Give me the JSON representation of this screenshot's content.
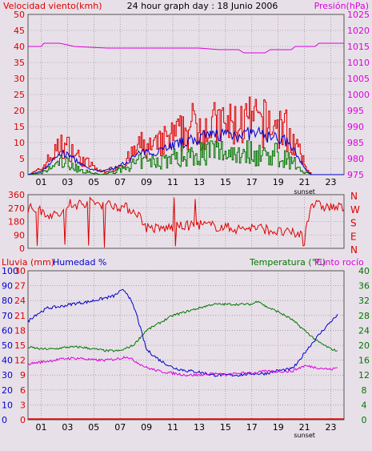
{
  "header": {
    "wind_label": "Velocidad viento(kmh)",
    "title": "24 hour graph day : 18 Junio 2006",
    "pressure_label": "Presión(hPa)"
  },
  "middle_header": {
    "rain_label": "Lluvia (mm)",
    "humidity_label": "Humedad %",
    "temperature_label": "Temperatura (°C)",
    "dewpoint_label": "Punto rocío"
  },
  "sunset_label": "sunset",
  "colors": {
    "background": "#e8e0e8",
    "grid": "#808080",
    "red": "#dd0000",
    "blue": "#0000cc",
    "green": "#007700",
    "magenta": "#dd00dd"
  },
  "chart_data": [
    {
      "type": "line",
      "name": "wind-pressure",
      "x_ticks": [
        "01",
        "03",
        "05",
        "07",
        "09",
        "11",
        "13",
        "15",
        "17",
        "19",
        "21",
        "23"
      ],
      "left_axis": {
        "label": "Velocidad viento(kmh)",
        "ticks": [
          0,
          5,
          10,
          15,
          20,
          25,
          30,
          35,
          40,
          45,
          50
        ],
        "ylim": [
          0,
          50
        ]
      },
      "right_axis": {
        "label": "Presión(hPa)",
        "ticks": [
          975,
          980,
          985,
          990,
          995,
          1000,
          1005,
          1010,
          1015,
          1020,
          1025
        ],
        "ylim": [
          975,
          1025
        ]
      },
      "pressure": {
        "x": [
          0,
          1,
          1.2,
          2,
          2.4,
          3,
          3.5,
          6,
          9,
          11.5,
          13,
          14.5,
          15,
          16,
          16.4,
          18,
          18.4,
          20,
          20.3,
          21.8,
          22.1,
          24
        ],
        "y": [
          1015,
          1015,
          1016,
          1016,
          1016,
          1015.5,
          1015,
          1014.5,
          1014.5,
          1014.5,
          1014.5,
          1014,
          1014,
          1014,
          1013,
          1013,
          1014,
          1014,
          1015,
          1015,
          1016,
          1016
        ]
      },
      "wind_profile": {
        "x": [
          0,
          1,
          1.5,
          2.5,
          3.2,
          3.8,
          4.5,
          5.5,
          6.5,
          7.5,
          8.5,
          9.5,
          10.5,
          11.5,
          12.5,
          13.5,
          14.5,
          15.5,
          16.5,
          17.5,
          18.5,
          19.5,
          20.5,
          21,
          21.5,
          22,
          24
        ],
        "gust": [
          0,
          2,
          5,
          10,
          9,
          6,
          4,
          1,
          2,
          5,
          10,
          9,
          12,
          14,
          17,
          17,
          17,
          17,
          18,
          18,
          17,
          16,
          8,
          3,
          0,
          0,
          0
        ],
        "average": [
          0,
          1,
          3,
          7,
          6,
          4,
          2,
          1,
          2,
          4,
          7,
          7,
          9,
          10,
          11,
          12,
          13,
          13,
          13,
          13,
          12,
          11,
          6,
          2,
          0,
          0,
          0
        ],
        "direction_only_speed": [
          0,
          0.5,
          2,
          5,
          4,
          2,
          1,
          0,
          1,
          3,
          5,
          5,
          6,
          7,
          8,
          9,
          9,
          9,
          9,
          8,
          8,
          7,
          3,
          1,
          0,
          0,
          0
        ]
      },
      "series": [
        {
          "name": "Velocidad viento",
          "color": "#dd0000"
        },
        {
          "name": "Presión",
          "color": "#dd00dd"
        }
      ],
      "grid": true
    },
    {
      "type": "line",
      "name": "wind-direction",
      "y_ticks": [
        0,
        90,
        180,
        270,
        360
      ],
      "ylim": [
        0,
        360
      ],
      "right_labels": [
        "N",
        "W",
        "S",
        "E",
        "N"
      ],
      "profile": {
        "x": [
          0,
          1,
          2,
          2.8,
          3.5,
          4.5,
          5.5,
          6.5,
          7.5,
          8.3,
          9,
          10,
          11,
          12,
          13,
          14,
          15,
          16,
          17,
          18,
          19,
          20,
          21,
          21.5,
          22.5,
          24
        ],
        "y": [
          270,
          250,
          220,
          240,
          290,
          310,
          300,
          290,
          270,
          240,
          140,
          130,
          140,
          150,
          160,
          150,
          140,
          130,
          140,
          130,
          110,
          100,
          90,
          300,
          280,
          270
        ]
      },
      "color": "#dd0000"
    },
    {
      "type": "line",
      "name": "rain-humidity-temperature",
      "x_ticks": [
        "01",
        "03",
        "05",
        "07",
        "09",
        "11",
        "13",
        "15",
        "17",
        "19",
        "21",
        "23"
      ],
      "rain_axis": {
        "label": "Lluvia (mm)",
        "ticks": [
          0,
          3,
          6,
          9,
          12,
          15,
          18,
          21,
          24,
          27,
          30
        ],
        "ylim": [
          0,
          30
        ]
      },
      "humidity_axis": {
        "label": "Humedad %",
        "ticks": [
          0,
          10,
          20,
          30,
          40,
          50,
          60,
          70,
          80,
          90,
          100
        ],
        "ylim": [
          0,
          100
        ]
      },
      "temperature_axis": {
        "label": "Temperatura (°C)",
        "ticks": [
          0,
          4,
          8,
          12,
          16,
          20,
          24,
          28,
          32,
          36,
          40
        ],
        "ylim": [
          0,
          40
        ]
      },
      "humidity": {
        "x": [
          0,
          0.5,
          1.5,
          2.5,
          3.5,
          4.5,
          5.5,
          6.5,
          7,
          7.3,
          7.6,
          8.2,
          9,
          10,
          11,
          12,
          13,
          14,
          15,
          16,
          17,
          18,
          19,
          20,
          20.5,
          21,
          22,
          23,
          23.5
        ],
        "y": [
          66,
          70,
          75,
          76,
          78,
          79,
          81,
          83,
          86,
          87,
          84,
          72,
          47,
          40,
          35,
          33,
          32,
          30,
          30,
          30,
          31,
          31,
          33,
          34,
          38,
          45,
          56,
          66,
          70
        ]
      },
      "temperature": {
        "x": [
          0,
          1,
          2,
          3,
          4,
          5,
          6,
          7,
          8,
          8.5,
          9,
          10,
          11,
          12,
          13,
          14,
          15,
          16,
          17,
          17.5,
          18,
          19,
          20,
          21,
          22,
          23,
          23.5
        ],
        "y": [
          19.5,
          19,
          19,
          19.5,
          19.5,
          19,
          18.5,
          18.5,
          20,
          22,
          24,
          26,
          28,
          29,
          30,
          31,
          31,
          31,
          31,
          32,
          30.5,
          29,
          27,
          24,
          21,
          19,
          18.5
        ]
      },
      "dewpoint": {
        "x": [
          0,
          1,
          2,
          3,
          4,
          5,
          6,
          7,
          7.5,
          8,
          9,
          10,
          11,
          12,
          13,
          14,
          15,
          16,
          17,
          18,
          19,
          20,
          21,
          22,
          23,
          23.5
        ],
        "y": [
          15,
          15.5,
          16,
          16.5,
          16.5,
          16,
          16,
          16.5,
          17,
          16,
          14,
          13,
          12.5,
          12,
          12,
          12.5,
          12,
          12.5,
          12.5,
          13,
          13,
          13,
          14.5,
          14,
          13.5,
          14
        ]
      },
      "rain": {
        "x": [
          0,
          24
        ],
        "y": [
          0,
          0
        ]
      },
      "series": [
        {
          "name": "Lluvia (mm)",
          "color": "#dd0000"
        },
        {
          "name": "Humedad %",
          "color": "#0000cc"
        },
        {
          "name": "Temperatura (°C)",
          "color": "#007700"
        },
        {
          "name": "Punto rocío",
          "color": "#dd00dd"
        }
      ],
      "grid": true
    }
  ]
}
